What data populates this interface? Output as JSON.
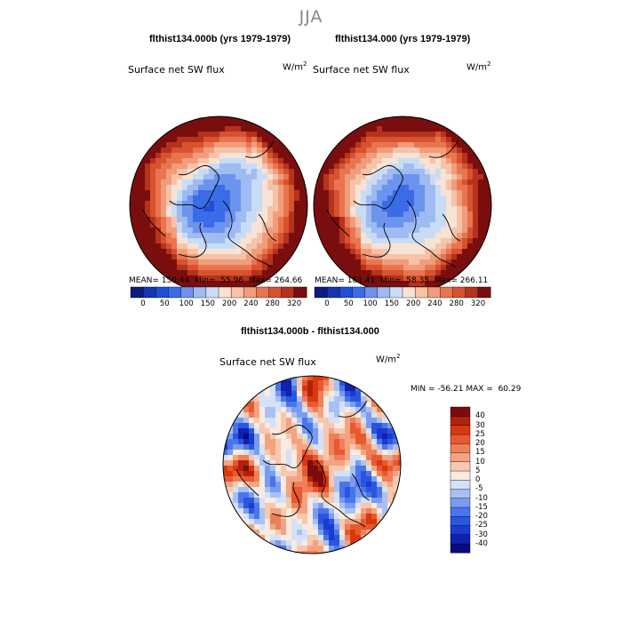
{
  "season": "JJA",
  "panels": [
    {
      "case_title": "flthist134.000b (yrs 1979-1979)",
      "var_name": "Surface net SW flux",
      "units": "W/m",
      "units_sup": "2",
      "mean_label": "MEAN=",
      "mean": "159.44",
      "min_label": "Min=",
      "min": "55.96",
      "max_label": "Max=",
      "max": "264.66"
    },
    {
      "case_title": "flthist134.000 (yrs 1979-1979)",
      "var_name": "Surface net SW flux",
      "units": "W/m",
      "units_sup": "2",
      "mean_label": "MEAN=",
      "mean": "161.41",
      "min_label": "Min=",
      "min": "58.35",
      "max_label": "Max=",
      "max": "266.11"
    }
  ],
  "field_colorbar": {
    "colors": [
      "#0a1a80",
      "#1535b0",
      "#1f4fd8",
      "#3a6ce8",
      "#6c93ee",
      "#9ebbf2",
      "#c9dcf5",
      "#f7e3d6",
      "#f6c3a8",
      "#f09d7c",
      "#e8754f",
      "#d8522f",
      "#b5321c",
      "#7a0e0e"
    ],
    "tick_labels": [
      "0",
      "50",
      "100",
      "150",
      "200",
      "240",
      "280",
      "320"
    ]
  },
  "diff": {
    "title": "flthist134.000b - flthist134.000",
    "var_name": "Surface net SW flux",
    "units": "W/m",
    "units_sup": "2",
    "min_label": "MIN =",
    "min": "-56.21",
    "max_label": "MAX =",
    "max": "60.29",
    "colorbar": {
      "colors": [
        "#0a0a80",
        "#1020b0",
        "#1a3ad0",
        "#2a55e0",
        "#4a75ea",
        "#7a9cf0",
        "#a9c0f4",
        "#d4e2f8",
        "#faeadf",
        "#f6c8ad",
        "#f2a482",
        "#ee7f58",
        "#e8592f",
        "#d8380f",
        "#b0220b",
        "#7a0c0c"
      ],
      "tick_labels": [
        "-40",
        "-30",
        "-25",
        "-20",
        "-15",
        "-10",
        "-5",
        "0",
        "5",
        "10",
        "15",
        "20",
        "25",
        "30",
        "40"
      ]
    }
  }
}
